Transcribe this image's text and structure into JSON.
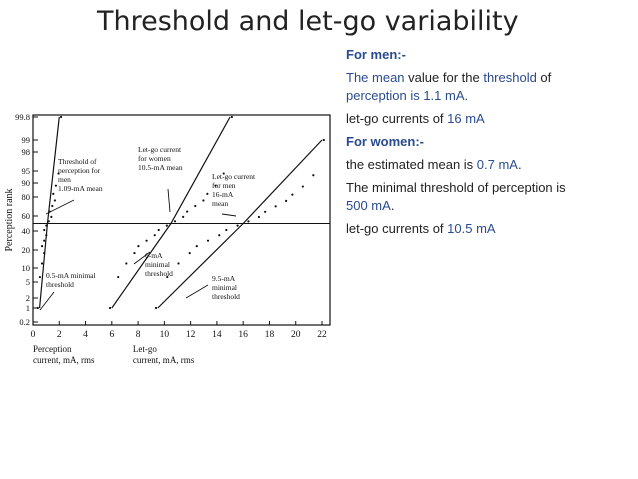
{
  "title": "Threshold and let-go variability",
  "notes": {
    "men_header": "For men:-",
    "men_line1": [
      "The mean",
      " value for the ",
      "threshold",
      " of"
    ],
    "men_line2": "perception is 1.1 mA.",
    "men_line3": [
      "let-go currents of ",
      "16 mA"
    ],
    "women_header": "For women:-",
    "women_line1": [
      "the estimated mean is ",
      "0.7 mA",
      "."
    ],
    "women_line2": " The minimal threshold of perception is",
    "women_line3": [
      "500 mA",
      "."
    ],
    "women_line4": [
      "let-go currents of  ",
      "10.5 mA"
    ]
  },
  "colors": {
    "accent": "#2a4b8d",
    "text": "#222222"
  },
  "chart_data": {
    "type": "scatter",
    "ylabel": "Perception rank",
    "y_ticks": [
      "0.2",
      "1",
      "2",
      "5",
      "10",
      "20",
      "40",
      "60",
      "80",
      "90",
      "95",
      "98",
      "99",
      "99.8"
    ],
    "x_ticks": [
      "0",
      "2",
      "4",
      "6",
      "8",
      "10",
      "12",
      "14",
      "16",
      "18",
      "20",
      "22"
    ],
    "xlim": [
      0,
      22
    ],
    "x_axis_label_left": [
      "Perception",
      "current, mA, rms"
    ],
    "x_axis_label_right": [
      "Let-go",
      "current, mA, rms"
    ],
    "series": [
      {
        "x": [
          0.5,
          1.1,
          2.0
        ],
        "y": [
          1,
          50,
          99.8
        ]
      },
      {
        "x": [
          6.0,
          10.5,
          15.0
        ],
        "y": [
          1,
          50,
          99.8
        ]
      },
      {
        "x": [
          9.5,
          16.0,
          22.0
        ],
        "y": [
          1,
          50,
          99
        ]
      }
    ],
    "annotations": [
      [
        "Threshold of",
        "perception for",
        "men",
        "1.09-mA mean"
      ],
      [
        "Let-go current",
        "for women",
        "10.5-mA mean"
      ],
      [
        "Let-go current",
        "for men",
        "16-mA",
        "mean"
      ],
      [
        "0.5-mA minimal",
        "threshold"
      ],
      [
        "6-mA",
        "minimal",
        "threshold"
      ],
      [
        "9.5-mA",
        "minimal",
        "threshold"
      ]
    ]
  }
}
